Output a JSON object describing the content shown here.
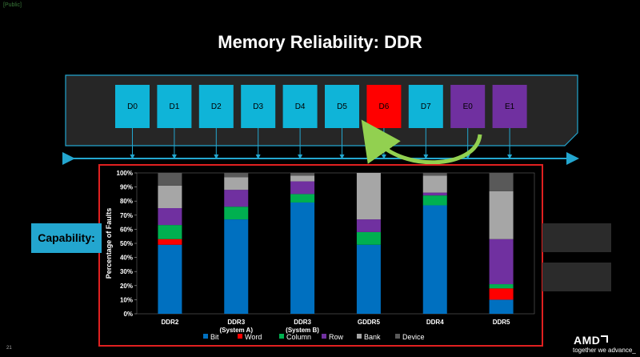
{
  "header": {
    "public_tag": "[Public]",
    "title": "Memory Reliability: DDR"
  },
  "chips": [
    {
      "label": "D0",
      "color": "#0fb4d8"
    },
    {
      "label": "D1",
      "color": "#0fb4d8"
    },
    {
      "label": "D2",
      "color": "#0fb4d8"
    },
    {
      "label": "D3",
      "color": "#0fb4d8"
    },
    {
      "label": "D4",
      "color": "#0fb4d8"
    },
    {
      "label": "D5",
      "color": "#0fb4d8"
    },
    {
      "label": "D6",
      "color": "#ff0000"
    },
    {
      "label": "D7",
      "color": "#0fb4d8"
    },
    {
      "label": "E0",
      "color": "#7030a0"
    },
    {
      "label": "E1",
      "color": "#7030a0"
    }
  ],
  "capability_label": "Capability:",
  "footer": {
    "slide_number": "21",
    "logo": "AMD",
    "tagline": "together we advance_"
  },
  "chart_data": {
    "type": "bar",
    "stacked": true,
    "ylabel": "Percentage of Faults",
    "ylim": [
      0,
      100
    ],
    "yticks": [
      "0%",
      "10%",
      "20%",
      "30%",
      "40%",
      "50%",
      "60%",
      "70%",
      "80%",
      "90%",
      "100%"
    ],
    "categories": [
      {
        "line1": "DDR2",
        "line2": ""
      },
      {
        "line1": "DDR3",
        "line2": "(System A)"
      },
      {
        "line1": "DDR3",
        "line2": "(System B)"
      },
      {
        "line1": "GDDR5",
        "line2": ""
      },
      {
        "line1": "DDR4",
        "line2": ""
      },
      {
        "line1": "DDR5",
        "line2": ""
      }
    ],
    "series": [
      {
        "name": "Bit",
        "color": "#0070c0",
        "values": [
          49,
          67,
          79,
          49,
          77,
          10
        ]
      },
      {
        "name": "Word",
        "color": "#ff0000",
        "values": [
          4,
          0,
          0,
          0,
          0,
          8
        ]
      },
      {
        "name": "Column",
        "color": "#00b050",
        "values": [
          10,
          9,
          6,
          9,
          7,
          3
        ]
      },
      {
        "name": "Row",
        "color": "#7030a0",
        "values": [
          12,
          12,
          9,
          9,
          2,
          32
        ]
      },
      {
        "name": "Bank",
        "color": "#a6a6a6",
        "values": [
          16,
          9,
          4,
          33,
          12,
          34
        ]
      },
      {
        "name": "Device",
        "color": "#595959",
        "values": [
          9,
          3,
          2,
          0,
          2,
          13
        ]
      }
    ],
    "legend_position": "bottom"
  }
}
